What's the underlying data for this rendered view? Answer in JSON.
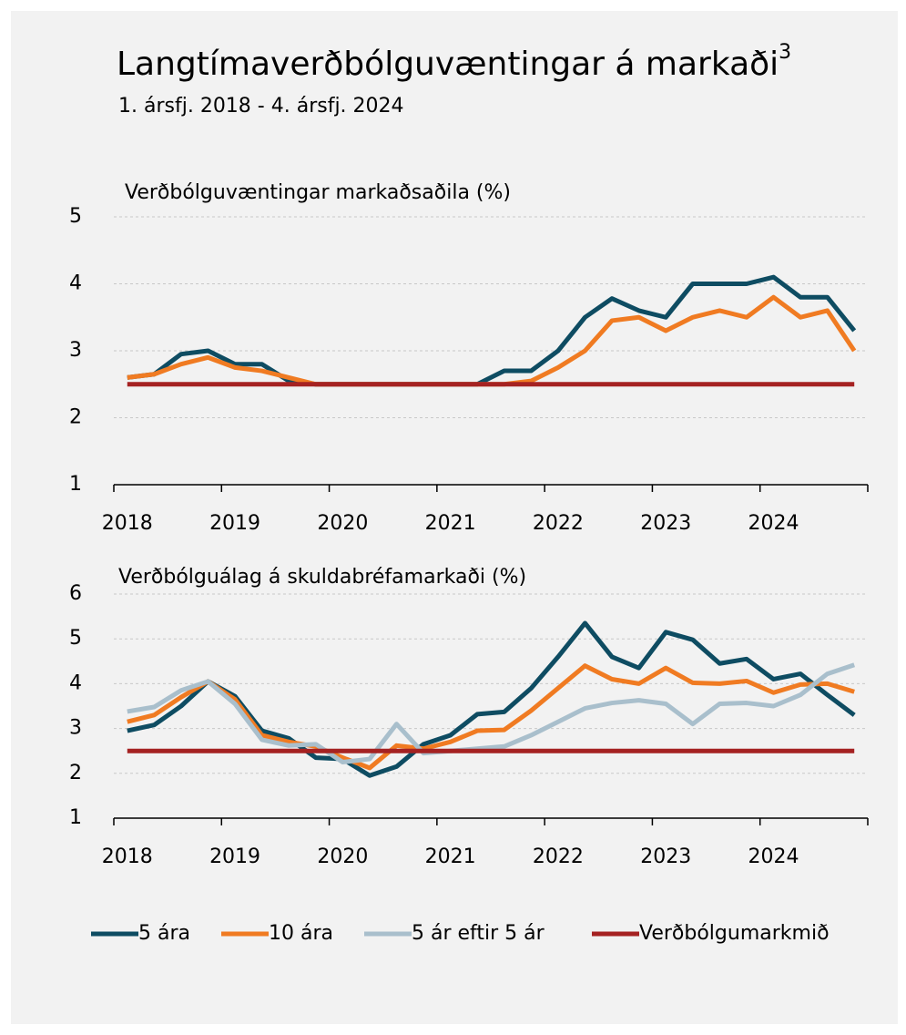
{
  "title": "Langtímaverðbólguvæntingar á markaði",
  "title_note": "3",
  "subtitle": "1. ársfj. 2018 - 4. ársfj. 2024",
  "chart_data": [
    {
      "type": "line",
      "axis_title": "Verðbólguvæntingar markaðsaðila (%)",
      "categories": [
        "2018",
        null,
        null,
        null,
        "2019",
        null,
        null,
        null,
        "2020",
        null,
        null,
        null,
        "2021",
        null,
        null,
        null,
        "2022",
        null,
        null,
        null,
        "2023",
        null,
        null,
        null,
        "2024",
        null,
        null,
        null
      ],
      "ylim": [
        1,
        5
      ],
      "yticks": [
        1,
        2,
        3,
        4,
        5
      ],
      "grid": true,
      "series": [
        {
          "name": "5 ára",
          "color": "#0e4c62",
          "values": [
            2.6,
            2.65,
            2.95,
            3.0,
            2.8,
            2.8,
            2.55,
            2.5,
            2.5,
            2.5,
            2.5,
            2.5,
            2.5,
            2.5,
            2.7,
            2.7,
            3.0,
            3.5,
            3.78,
            3.6,
            3.5,
            4.0,
            4.0,
            4.0,
            4.1,
            3.8,
            3.8,
            3.3
          ]
        },
        {
          "name": "10 ára",
          "color": "#f07b22",
          "values": [
            2.6,
            2.65,
            2.8,
            2.9,
            2.75,
            2.7,
            2.6,
            2.5,
            2.5,
            2.5,
            2.5,
            2.5,
            2.5,
            2.5,
            2.5,
            2.55,
            2.75,
            3.0,
            3.45,
            3.5,
            3.3,
            3.5,
            3.6,
            3.5,
            3.8,
            3.5,
            3.6,
            3.0
          ]
        },
        {
          "name": "Verðbólgumarkmið",
          "color": "#a52222",
          "values": [
            2.5,
            2.5,
            2.5,
            2.5,
            2.5,
            2.5,
            2.5,
            2.5,
            2.5,
            2.5,
            2.5,
            2.5,
            2.5,
            2.5,
            2.5,
            2.5,
            2.5,
            2.5,
            2.5,
            2.5,
            2.5,
            2.5,
            2.5,
            2.5,
            2.5,
            2.5,
            2.5,
            2.5
          ]
        }
      ]
    },
    {
      "type": "line",
      "axis_title": "Verðbólguálag á skuldabréfamarkaði (%)",
      "categories": [
        "2018",
        null,
        null,
        null,
        "2019",
        null,
        null,
        null,
        "2020",
        null,
        null,
        null,
        "2021",
        null,
        null,
        null,
        "2022",
        null,
        null,
        null,
        "2023",
        null,
        null,
        null,
        "2024",
        null,
        null,
        null
      ],
      "ylim": [
        1,
        6
      ],
      "yticks": [
        1,
        2,
        3,
        4,
        5,
        6
      ],
      "grid": true,
      "legend": "bottom",
      "series": [
        {
          "name": "5 ára",
          "color": "#0e4c62",
          "values": [
            2.95,
            3.08,
            3.5,
            4.05,
            3.72,
            2.95,
            2.78,
            2.35,
            2.32,
            1.95,
            2.15,
            2.65,
            2.85,
            3.32,
            3.37,
            3.9,
            4.6,
            5.35,
            4.6,
            4.35,
            5.15,
            4.98,
            4.45,
            4.55,
            4.1,
            4.22,
            3.75,
            3.3
          ]
        },
        {
          "name": "10 ára",
          "color": "#f07b22",
          "values": [
            3.15,
            3.3,
            3.7,
            4.05,
            3.65,
            2.85,
            2.7,
            2.6,
            2.35,
            2.12,
            2.62,
            2.55,
            2.7,
            2.95,
            2.97,
            3.4,
            3.9,
            4.4,
            4.1,
            4.0,
            4.35,
            4.02,
            4.0,
            4.06,
            3.8,
            3.98,
            4.0,
            3.82
          ]
        },
        {
          "name": "5 ár eftir 5 ár",
          "color": "#a9bfcc",
          "values": [
            3.38,
            3.48,
            3.85,
            4.05,
            3.55,
            2.75,
            2.62,
            2.65,
            2.25,
            2.32,
            3.1,
            2.45,
            2.5,
            2.55,
            2.6,
            2.85,
            3.15,
            3.45,
            3.57,
            3.63,
            3.55,
            3.1,
            3.55,
            3.57,
            3.5,
            3.75,
            4.22,
            4.42
          ]
        },
        {
          "name": "Verðbólgumarkmið",
          "color": "#a52222",
          "values": [
            2.5,
            2.5,
            2.5,
            2.5,
            2.5,
            2.5,
            2.5,
            2.5,
            2.5,
            2.5,
            2.5,
            2.5,
            2.5,
            2.5,
            2.5,
            2.5,
            2.5,
            2.5,
            2.5,
            2.5,
            2.5,
            2.5,
            2.5,
            2.5,
            2.5,
            2.5,
            2.5,
            2.5
          ]
        }
      ]
    }
  ]
}
